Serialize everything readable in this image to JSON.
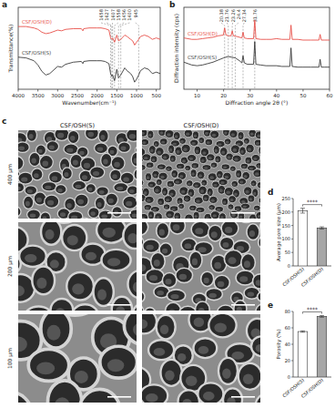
{
  "chart_data": [
    {
      "type": "line",
      "xlabel": "Wavenumber(cm⁻¹)",
      "ylabel": "Transmittance(%)",
      "xlim": [
        4000,
        400
      ],
      "xticks": [
        4000,
        3500,
        3000,
        2500,
        2000,
        1500,
        1000,
        500
      ],
      "ylim": [
        0,
        115
      ],
      "tick_labels": "x",
      "series": [
        {
          "name": "CSF/OSH(D)",
          "color": "#e8504a",
          "x": [
            4000,
            3800,
            3600,
            3500,
            3400,
            3300,
            3200,
            3100,
            3000,
            2900,
            2800,
            2600,
            2400,
            2360,
            2340,
            2200,
            2000,
            1900,
            1800,
            1700,
            1658,
            1627,
            1607,
            1558,
            1500,
            1456,
            1400,
            1300,
            1240,
            1150,
            1100,
            1050,
            1000,
            945,
            900,
            800,
            700,
            600,
            500,
            400
          ],
          "values": [
            88,
            88,
            86,
            84,
            80,
            78,
            79,
            81,
            83,
            82,
            84,
            85,
            85,
            82,
            85,
            86,
            86,
            86,
            85,
            83,
            72,
            70,
            72,
            66,
            76,
            68,
            70,
            76,
            74,
            70,
            68,
            62,
            66,
            70,
            74,
            76,
            74,
            70,
            72,
            70
          ]
        },
        {
          "name": "CSF/OSH(S)",
          "color": "#3a3a3a",
          "x": [
            4000,
            3800,
            3600,
            3500,
            3400,
            3300,
            3200,
            3100,
            3000,
            2900,
            2800,
            2600,
            2400,
            2360,
            2340,
            2200,
            2000,
            1900,
            1800,
            1700,
            1658,
            1627,
            1607,
            1558,
            1500,
            1456,
            1400,
            1300,
            1240,
            1150,
            1100,
            1050,
            1000,
            945,
            900,
            800,
            700,
            600,
            500,
            400
          ],
          "values": [
            45,
            44,
            40,
            34,
            25,
            20,
            22,
            27,
            32,
            31,
            35,
            38,
            39,
            36,
            39,
            40,
            40,
            40,
            39,
            36,
            22,
            18,
            20,
            12,
            28,
            16,
            20,
            30,
            26,
            22,
            18,
            10,
            14,
            20,
            26,
            30,
            28,
            22,
            24,
            22
          ]
        }
      ],
      "annotations": [
        {
          "x": 1658,
          "text": "1658"
        },
        {
          "x": 1627,
          "text": "1627"
        },
        {
          "x": 1607,
          "text": "1607"
        },
        {
          "x": 1558,
          "text": "1558"
        },
        {
          "x": 1456,
          "text": "1456"
        },
        {
          "x": 1400,
          "text": "1400"
        },
        {
          "x": 945,
          "text": "945"
        }
      ]
    },
    {
      "type": "line",
      "xlabel": "Diffraction angle 2θ (°)",
      "ylabel": "Diffraction intensity (cps)",
      "xlim": [
        5,
        60
      ],
      "xticks": [
        10,
        20,
        30,
        40,
        50,
        60
      ],
      "ylim": [
        0,
        115
      ],
      "tick_labels": "x",
      "series": [
        {
          "name": "CSF/OSH(D)",
          "color": "#e8504a",
          "x": [
            5,
            8,
            10,
            12,
            14,
            16,
            18,
            19.9,
            20.38,
            20.9,
            22,
            22.8,
            23.26,
            23.7,
            25,
            26.9,
            27.34,
            27.8,
            29,
            31.3,
            31.76,
            32.2,
            34,
            36,
            38,
            40,
            42,
            45,
            45.45,
            45.9,
            48,
            50,
            53,
            56,
            56.45,
            56.9,
            58,
            60
          ],
          "values": [
            72,
            70,
            70,
            71,
            72,
            73,
            75,
            76,
            86,
            76,
            75,
            75,
            82,
            75,
            74,
            72,
            80,
            72,
            71,
            71,
            97,
            71,
            70,
            70,
            70,
            71,
            70,
            70,
            90,
            70,
            70,
            69,
            69,
            69,
            77,
            69,
            69,
            69
          ]
        },
        {
          "name": "CSF/OSH(S)",
          "color": "#3a3a3a",
          "x": [
            5,
            8,
            10,
            12,
            14,
            16,
            18,
            20,
            21.76,
            23,
            24.4,
            26,
            26.9,
            27.34,
            27.8,
            29,
            31.3,
            31.76,
            32.2,
            34,
            36,
            38,
            40,
            42,
            45,
            45.45,
            45.9,
            48,
            50,
            53,
            56,
            56.45,
            56.9,
            58,
            60
          ],
          "values": [
            38,
            34,
            33,
            34,
            36,
            38,
            41,
            44,
            46,
            45,
            44,
            40,
            37,
            47,
            37,
            35,
            35,
            67,
            35,
            34,
            33,
            33,
            33,
            32,
            32,
            58,
            32,
            31,
            31,
            31,
            31,
            42,
            31,
            31,
            31
          ]
        }
      ],
      "annotations": [
        {
          "x": 20.38,
          "text": "20.38"
        },
        {
          "x": 23.26,
          "text": "23.26"
        },
        {
          "x": 27.34,
          "text": "27.34"
        },
        {
          "x": 31.76,
          "text": "31.76"
        },
        {
          "x": 21.76,
          "text": "21.76"
        },
        {
          "x": 24.4,
          "text": "24.4"
        }
      ]
    },
    {
      "type": "bar",
      "ylabel": "Average pore size (μm)",
      "categories": [
        "CSF/OSH(S)",
        "CSF/OSH(D)"
      ],
      "values": [
        205,
        141
      ],
      "errors": [
        9,
        4
      ],
      "colors": [
        "#ffffff",
        "#a6a6a6"
      ],
      "ylim": [
        0,
        250
      ],
      "yticks": [
        0,
        50,
        100,
        150,
        200,
        250
      ],
      "annotations": [
        {
          "text": "****"
        }
      ]
    },
    {
      "type": "bar",
      "ylabel": "Porosity (%)",
      "categories": [
        "CSF/OSH(S)",
        "CSF/OSH(D)"
      ],
      "values": [
        55.5,
        74
      ],
      "errors": [
        0.8,
        1
      ],
      "colors": [
        "#ffffff",
        "#a6a6a6"
      ],
      "ylim": [
        0,
        80
      ],
      "yticks": [
        0,
        20,
        40,
        60,
        80
      ],
      "annotations": [
        {
          "text": "****"
        }
      ]
    }
  ],
  "figure": {
    "panel_labels": [
      "a",
      "b",
      "c",
      "d",
      "e"
    ],
    "sem": {
      "columns": [
        "CSF/OSH(S)",
        "CSF/OSH(D)"
      ],
      "rows": [
        "400 μm",
        "200 μm",
        "100 μm"
      ]
    }
  }
}
